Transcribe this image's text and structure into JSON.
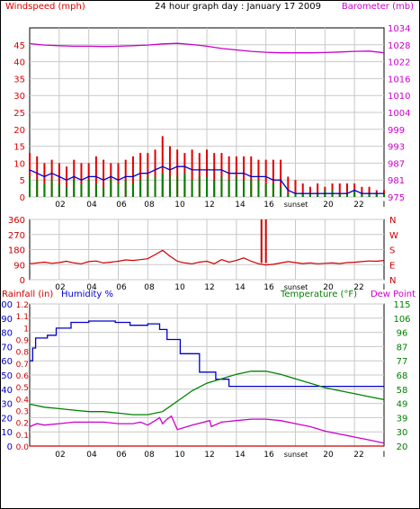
{
  "colors": {
    "background": "#ffffff",
    "frame": "#000000",
    "grid": "#c8c8c8",
    "wind_red": "#e00000",
    "wind_green": "#008000",
    "wind_blue": "#0000cc",
    "barometer": "#cc00cc",
    "direction": "#cc0000",
    "humidity": "#0000cc",
    "temperature": "#008000",
    "dewpoint": "#cc00cc",
    "rainfall": "#cc0000"
  },
  "chart_data": [
    {
      "type": "line",
      "title": "24 hour graph day : January 17 2009",
      "left_label": "Windspeed (mph)",
      "right_label": "Barometer (mb)",
      "left_ticks": [
        "0",
        "5",
        "10",
        "15",
        "20",
        "25",
        "30",
        "35",
        "40",
        "45"
      ],
      "left_lim": [
        0,
        50
      ],
      "right_ticks": [
        "975",
        "981",
        "987",
        "993",
        "999",
        "1004",
        "1010",
        "1016",
        "1022",
        "1028",
        "1034"
      ],
      "right_lim": [
        975,
        1034
      ],
      "x_ticks": [
        "02",
        "04",
        "06",
        "08",
        "10",
        "12",
        "14",
        "16",
        "sunset",
        "20",
        "22",
        "I"
      ],
      "xlim": [
        0,
        24
      ],
      "series": [
        {
          "axis": "left",
          "style": "bars",
          "color_key": "wind_red",
          "x": [
            0.0,
            0.5,
            1.0,
            1.5,
            2.0,
            2.5,
            3.0,
            3.5,
            4.0,
            4.5,
            5.0,
            5.5,
            6.0,
            6.5,
            7.0,
            7.5,
            8.0,
            8.5,
            9.0,
            9.5,
            10.0,
            10.5,
            11.0,
            11.5,
            12.0,
            12.5,
            13.0,
            13.5,
            14.0,
            14.5,
            15.0,
            15.5,
            16.0,
            16.5,
            17.0,
            17.5,
            18.0,
            18.5,
            19.0,
            19.5,
            20.0,
            20.5,
            21.0,
            21.5,
            22.0,
            22.5,
            23.0,
            23.5,
            24.0
          ],
          "values": [
            13,
            12,
            10,
            11,
            10,
            9,
            11,
            10,
            10,
            12,
            11,
            10,
            10,
            11,
            12,
            13,
            13,
            14,
            18,
            15,
            14,
            13,
            14,
            13,
            14,
            13,
            13,
            12,
            12,
            12,
            12,
            11,
            11,
            11,
            11,
            6,
            5,
            4,
            3,
            4,
            3,
            4,
            4,
            4,
            4,
            3,
            3,
            2,
            2
          ]
        },
        {
          "axis": "left",
          "style": "bars",
          "color_key": "wind_green",
          "x": [
            0.0,
            0.5,
            1.0,
            1.5,
            2.0,
            2.5,
            3.0,
            3.5,
            4.0,
            4.5,
            5.0,
            5.5,
            6.0,
            6.5,
            7.0,
            7.5,
            8.0,
            8.5,
            9.0,
            9.5,
            10.0,
            10.5,
            11.0,
            11.5,
            12.0,
            12.5,
            13.0,
            13.5,
            14.0,
            14.5,
            15.0,
            15.5,
            16.0,
            16.5,
            17.0,
            17.5,
            18.0,
            18.5,
            19.0,
            19.5,
            20.0,
            20.5,
            21.0,
            21.5,
            22.0,
            22.5,
            23.0,
            23.5,
            24.0
          ],
          "values": [
            6,
            5,
            4,
            5,
            4,
            3,
            5,
            4,
            5,
            4,
            3,
            5,
            4,
            5,
            4,
            5,
            6,
            6,
            7,
            6,
            6,
            7,
            5,
            6,
            6,
            5,
            6,
            5,
            6,
            5,
            5,
            5,
            4,
            4,
            3,
            1,
            1,
            1,
            1,
            1,
            2,
            2,
            1,
            1,
            2,
            1,
            1,
            1,
            1
          ]
        },
        {
          "axis": "left",
          "style": "line",
          "color_key": "wind_blue",
          "x": [
            0.0,
            0.5,
            1.0,
            1.5,
            2.0,
            2.5,
            3.0,
            3.5,
            4.0,
            4.5,
            5.0,
            5.5,
            6.0,
            6.5,
            7.0,
            7.5,
            8.0,
            8.5,
            9.0,
            9.5,
            10.0,
            10.5,
            11.0,
            11.5,
            12.0,
            12.5,
            13.0,
            13.5,
            14.0,
            14.5,
            15.0,
            15.5,
            16.0,
            16.5,
            17.0,
            17.5,
            18.0,
            18.5,
            19.0,
            19.5,
            20.0,
            20.5,
            21.0,
            21.5,
            22.0,
            22.5,
            23.0,
            23.5,
            24.0
          ],
          "values": [
            8,
            7,
            6,
            7,
            6,
            5,
            6,
            5,
            6,
            6,
            5,
            6,
            5,
            6,
            6,
            7,
            7,
            8,
            9,
            8,
            9,
            9,
            8,
            8,
            8,
            8,
            8,
            7,
            7,
            7,
            6,
            6,
            6,
            5,
            5,
            2,
            1,
            1,
            1,
            1,
            1,
            1,
            1,
            1,
            2,
            1,
            1,
            1,
            1
          ]
        },
        {
          "axis": "right",
          "style": "line",
          "color_key": "barometer",
          "x": [
            0,
            1,
            2,
            3,
            4,
            5,
            6,
            7,
            8,
            9,
            10,
            11,
            12,
            13,
            14,
            15,
            16,
            17,
            18,
            19,
            20,
            21,
            22,
            23,
            24
          ],
          "values": [
            1028.5,
            1028.0,
            1027.8,
            1027.6,
            1027.6,
            1027.5,
            1027.6,
            1027.8,
            1028.0,
            1028.4,
            1028.6,
            1028.2,
            1027.6,
            1026.8,
            1026.3,
            1025.8,
            1025.5,
            1025.3,
            1025.3,
            1025.3,
            1025.4,
            1025.6,
            1025.8,
            1025.9,
            1025.3
          ]
        }
      ]
    },
    {
      "type": "line",
      "left_ticks": [
        "0",
        "90",
        "180",
        "270",
        "360"
      ],
      "left_lim": [
        0,
        360
      ],
      "right_ticks": [
        "N",
        "W",
        "S",
        "E",
        "N"
      ],
      "x_ticks": [
        "02",
        "04",
        "06",
        "08",
        "10",
        "12",
        "14",
        "16",
        "sunset",
        "20",
        "22",
        "I"
      ],
      "xlim": [
        0,
        24
      ],
      "series": [
        {
          "axis": "left",
          "color_key": "direction",
          "x": [
            0,
            0.5,
            1,
            1.5,
            2,
            2.5,
            3,
            3.5,
            4,
            4.5,
            5,
            5.5,
            6,
            6.5,
            7,
            7.5,
            8,
            8.5,
            9,
            9.5,
            10,
            10.5,
            11,
            11.5,
            12,
            12.5,
            13,
            13.5,
            14,
            14.5,
            15,
            15.5,
            16,
            16.5,
            17,
            17.5,
            18,
            18.5,
            19,
            19.5,
            20,
            20.5,
            21,
            21.5,
            22,
            22.5,
            23,
            23.5,
            24
          ],
          "values": [
            95,
            100,
            105,
            98,
            102,
            110,
            100,
            95,
            108,
            112,
            100,
            105,
            110,
            118,
            115,
            120,
            125,
            150,
            175,
            140,
            110,
            100,
            95,
            105,
            110,
            95,
            120,
            105,
            115,
            130,
            110,
            95,
            88,
            92,
            100,
            108,
            102,
            96,
            100,
            95,
            98,
            100,
            96,
            102,
            104,
            108,
            112,
            110,
            115
          ]
        },
        {
          "axis": "left",
          "style": "spikes",
          "color_key": "direction",
          "x": [
            15.7,
            16.0
          ],
          "values": [
            360,
            360
          ]
        }
      ]
    },
    {
      "type": "line",
      "left_label_rain": "Rainfall (in)",
      "left_label_humidity": "Humidity %",
      "right_label": "Temperature (°F)",
      "right_label2": "Dew Point",
      "humidity_ticks": [
        "0",
        "10",
        "20",
        "30",
        "40",
        "50",
        "60",
        "70",
        "80",
        "90",
        "100"
      ],
      "rain_ticks": [
        "0.0",
        "0.1",
        "0.2",
        "0.3",
        "0.4",
        "0.5",
        "0.6",
        "0.7",
        "0.8",
        "0.9",
        "1",
        "1.1",
        "1.2"
      ],
      "temp_ticks": [
        "20",
        "30",
        "39",
        "49",
        "58",
        "68",
        "77",
        "87",
        "96",
        "106",
        "115"
      ],
      "temp_lim": [
        20,
        115
      ],
      "humidity_lim": [
        0,
        100
      ],
      "x_ticks": [
        "02",
        "04",
        "06",
        "08",
        "10",
        "12",
        "14",
        "16",
        "sunset",
        "20",
        "22",
        "I"
      ],
      "xlim": [
        0,
        24
      ],
      "series": [
        {
          "name": "Humidity %",
          "axis": "humidity",
          "style": "step",
          "color_key": "humidity",
          "x": [
            0.0,
            0.2,
            0.4,
            1.2,
            1.8,
            2.8,
            4.0,
            5.8,
            6.8,
            8.0,
            8.8,
            9.3,
            10.2,
            11.5,
            12.6,
            13.5,
            15.0,
            18.0,
            21.0,
            23.0,
            24.0
          ],
          "values": [
            60,
            69,
            76,
            78,
            83,
            87,
            88,
            87,
            85,
            86,
            82,
            75,
            65,
            52,
            47,
            42,
            42,
            42,
            42,
            42,
            42
          ]
        },
        {
          "name": "Temperature (°F)",
          "axis": "temp",
          "color_key": "temperature",
          "x": [
            0,
            1,
            2,
            3,
            4,
            5,
            6,
            7,
            8,
            9,
            10,
            11,
            12,
            13,
            14,
            15,
            16,
            17,
            18,
            19,
            20,
            21,
            22,
            23,
            24
          ],
          "values": [
            48,
            46,
            45,
            44,
            43,
            43,
            42,
            41,
            41,
            43,
            50,
            57,
            62,
            65,
            68,
            70,
            70,
            68,
            65,
            62,
            59,
            57,
            55,
            53,
            51
          ]
        },
        {
          "name": "Dew Point",
          "axis": "temp",
          "color_key": "dewpoint",
          "x": [
            0,
            0.5,
            1,
            2,
            3,
            4,
            5,
            6,
            7,
            7.5,
            8,
            8.5,
            8.8,
            9,
            9.3,
            9.6,
            10,
            11,
            12.2,
            12.3,
            13,
            14,
            15,
            16,
            17,
            18,
            19,
            20,
            21,
            22,
            23,
            24
          ],
          "values": [
            33,
            35,
            34,
            35,
            36,
            36,
            36,
            35,
            35,
            36,
            34,
            37,
            39,
            35,
            38,
            40,
            31,
            34,
            37,
            33,
            36,
            37,
            38,
            38,
            37,
            35,
            33,
            30,
            28,
            26,
            24,
            22
          ]
        },
        {
          "name": "Rainfall (in)",
          "axis": "rain",
          "color_key": "rainfall",
          "x": [
            0,
            24
          ],
          "values": [
            0,
            0
          ]
        }
      ]
    }
  ]
}
